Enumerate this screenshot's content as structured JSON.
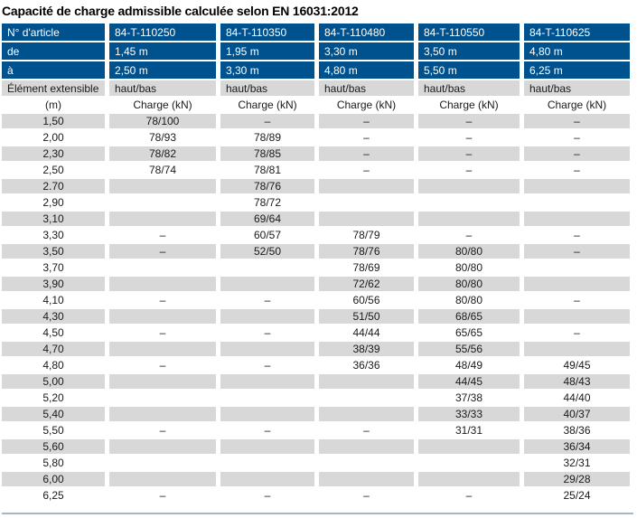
{
  "title": "Capacité de charge admissible calculée selon EN 16031:2012",
  "colors": {
    "header_blue": "#00528f",
    "row_gray": "#d8d8d8",
    "bottom_rule": "#a8b6c4"
  },
  "table": {
    "article_label": "N° d'article",
    "articles": [
      "84-T-110250",
      "84-T-110350",
      "84-T-110480",
      "84-T-110550",
      "84-T-110625"
    ],
    "from_label": "de",
    "from_values": [
      "1,45 m",
      "1,95 m",
      "3,30 m",
      "3,50 m",
      "4,80 m"
    ],
    "to_label": "à",
    "to_values": [
      "2,50 m",
      "3,30 m",
      "4,80 m",
      "5,50 m",
      "6,25 m"
    ],
    "element_label": "Élément extensible",
    "haut_bas_values": [
      "haut/bas",
      "haut/bas",
      "haut/bas",
      "haut/bas",
      "haut/bas"
    ],
    "unit_label": "(m)",
    "charge_labels": [
      "Charge (kN)",
      "Charge (kN)",
      "Charge (kN)",
      "Charge (kN)",
      "Charge (kN)"
    ],
    "rows": [
      {
        "m": "1,50",
        "values": [
          "78/100",
          "–",
          "–",
          "–",
          "–"
        ]
      },
      {
        "m": "2,00",
        "values": [
          "78/93",
          "78/89",
          "–",
          "–",
          "–"
        ]
      },
      {
        "m": "2,30",
        "values": [
          "78/82",
          "78/85",
          "–",
          "–",
          "–"
        ]
      },
      {
        "m": "2,50",
        "values": [
          "78/74",
          "78/81",
          "–",
          "–",
          "–"
        ]
      },
      {
        "m": "2.70",
        "values": [
          "",
          "78/76",
          "",
          "",
          ""
        ]
      },
      {
        "m": "2,90",
        "values": [
          "",
          "78/72",
          "",
          "",
          ""
        ]
      },
      {
        "m": "3,10",
        "values": [
          "",
          "69/64",
          "",
          "",
          ""
        ]
      },
      {
        "m": "3,30",
        "values": [
          "–",
          "60/57",
          "78/79",
          "–",
          "–"
        ]
      },
      {
        "m": "3,50",
        "values": [
          "–",
          "52/50",
          "78/76",
          "80/80",
          "–"
        ]
      },
      {
        "m": "3,70",
        "values": [
          "",
          "",
          "78/69",
          "80/80",
          ""
        ]
      },
      {
        "m": "3,90",
        "values": [
          "",
          "",
          "72/62",
          "80/80",
          ""
        ]
      },
      {
        "m": "4,10",
        "values": [
          "–",
          "–",
          "60/56",
          "80/80",
          "–"
        ]
      },
      {
        "m": "4,30",
        "values": [
          "",
          "",
          "51/50",
          "68/65",
          ""
        ]
      },
      {
        "m": "4,50",
        "values": [
          "–",
          "–",
          "44/44",
          "65/65",
          "–"
        ]
      },
      {
        "m": "4,70",
        "values": [
          "",
          "",
          "38/39",
          "55/56",
          ""
        ]
      },
      {
        "m": "4,80",
        "values": [
          "–",
          "–",
          "36/36",
          "48/49",
          "49/45"
        ]
      },
      {
        "m": "5,00",
        "values": [
          "",
          "",
          "",
          "44/45",
          "48/43"
        ]
      },
      {
        "m": "5,20",
        "values": [
          "",
          "",
          "",
          "37/38",
          "44/40"
        ]
      },
      {
        "m": "5,40",
        "values": [
          "",
          "",
          "",
          "33/33",
          "40/37"
        ]
      },
      {
        "m": "5,50",
        "values": [
          "–",
          "–",
          "–",
          "31/31",
          "38/36"
        ]
      },
      {
        "m": "5,60",
        "values": [
          "",
          "",
          "",
          "",
          "36/34"
        ]
      },
      {
        "m": "5,80",
        "values": [
          "",
          "",
          "",
          "",
          "32/31"
        ]
      },
      {
        "m": "6,00",
        "values": [
          "",
          "",
          "",
          "",
          "29/28"
        ]
      },
      {
        "m": "6,25",
        "values": [
          "–",
          "–",
          "–",
          "–",
          "25/24"
        ]
      }
    ]
  }
}
